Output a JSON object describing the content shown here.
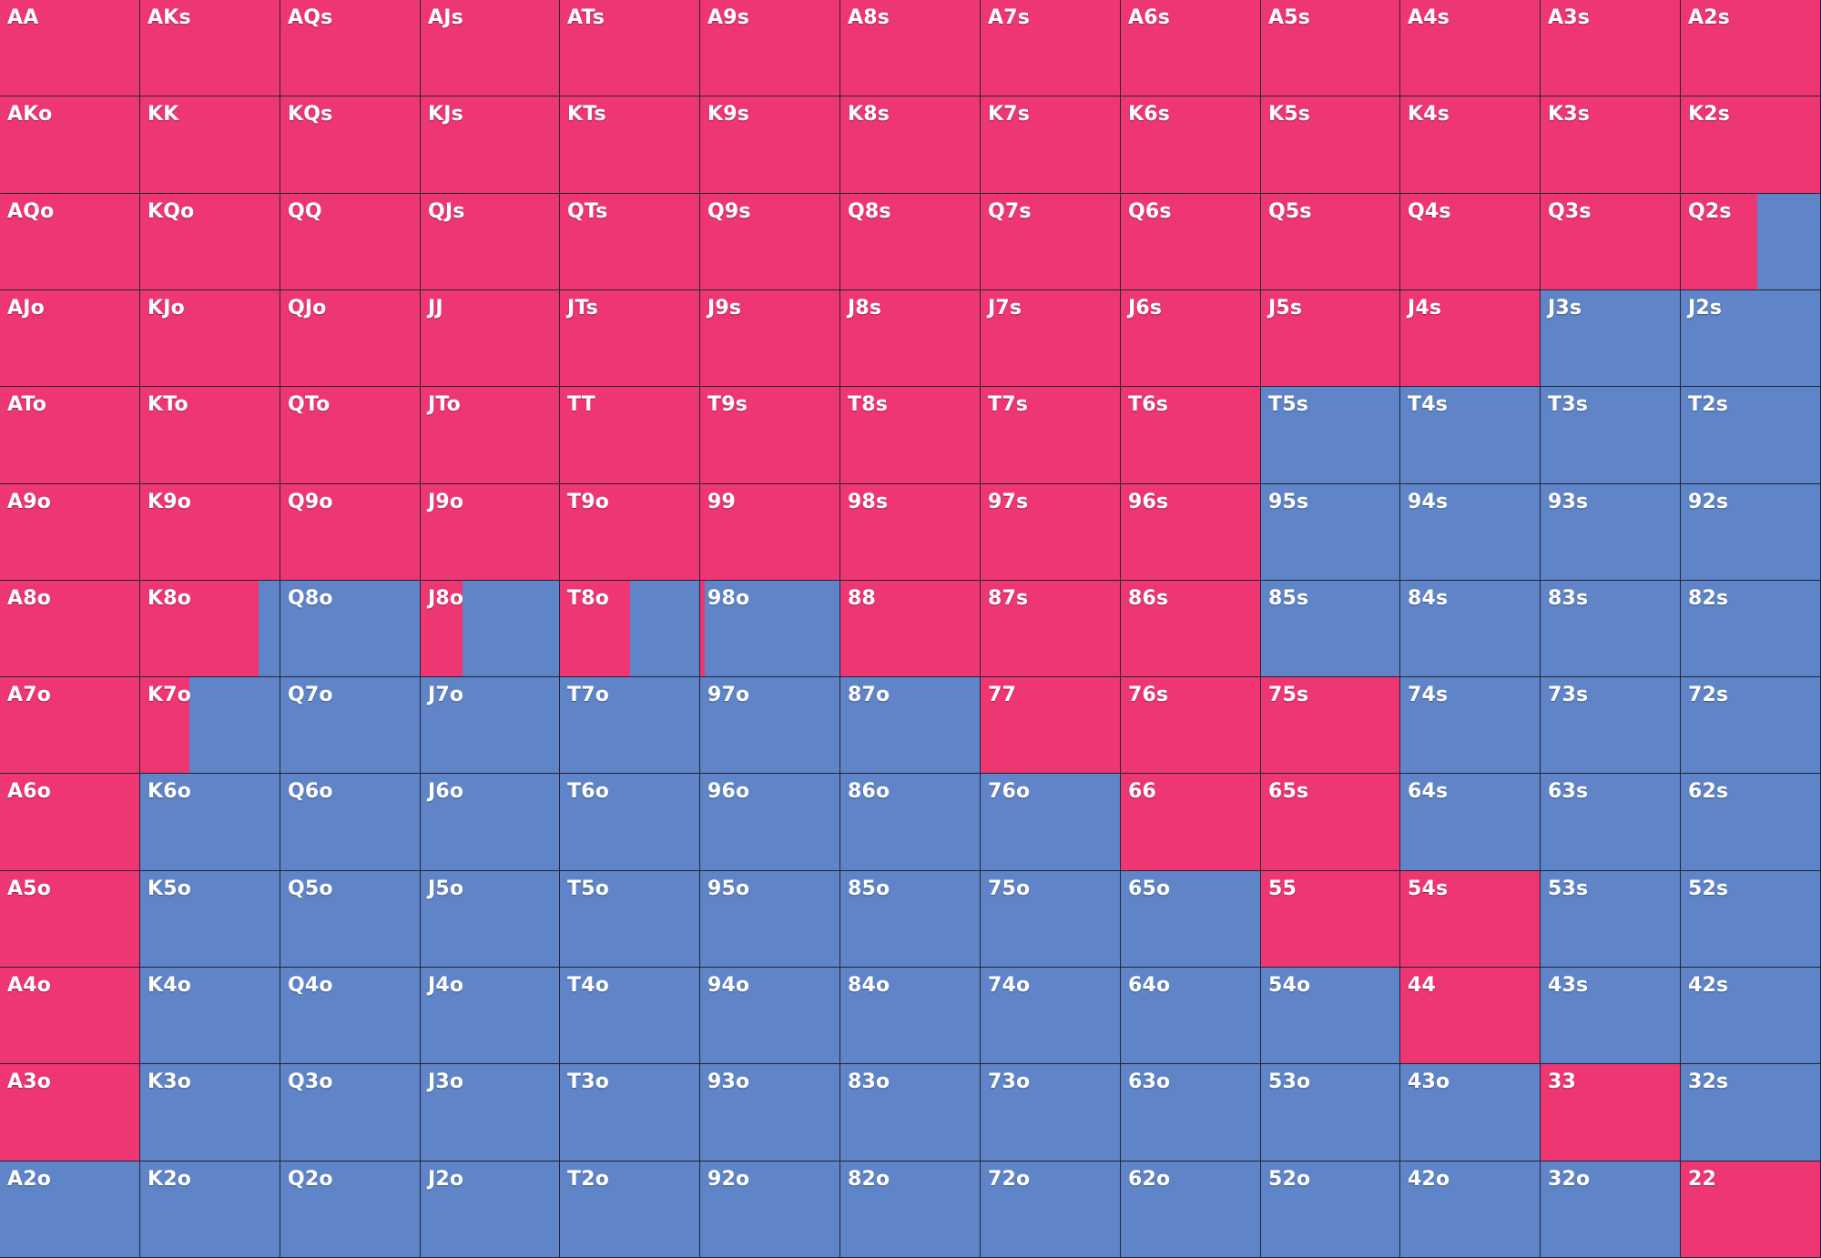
{
  "colors": {
    "raise": "#ed3672",
    "fold": "#5f84c7"
  },
  "ranks": [
    "A",
    "K",
    "Q",
    "J",
    "T",
    "9",
    "8",
    "7",
    "6",
    "5",
    "4",
    "3",
    "2"
  ],
  "labels": [
    [
      "AA",
      "AKs",
      "AQs",
      "AJs",
      "ATs",
      "A9s",
      "A8s",
      "A7s",
      "A6s",
      "A5s",
      "A4s",
      "A3s",
      "A2s"
    ],
    [
      "AKo",
      "KK",
      "KQs",
      "KJs",
      "KTs",
      "K9s",
      "K8s",
      "K7s",
      "K6s",
      "K5s",
      "K4s",
      "K3s",
      "K2s"
    ],
    [
      "AQo",
      "KQo",
      "QQ",
      "QJs",
      "QTs",
      "Q9s",
      "Q8s",
      "Q7s",
      "Q6s",
      "Q5s",
      "Q4s",
      "Q3s",
      "Q2s"
    ],
    [
      "AJo",
      "KJo",
      "QJo",
      "JJ",
      "JTs",
      "J9s",
      "J8s",
      "J7s",
      "J6s",
      "J5s",
      "J4s",
      "J3s",
      "J2s"
    ],
    [
      "ATo",
      "KTo",
      "QTo",
      "JTo",
      "TT",
      "T9s",
      "T8s",
      "T7s",
      "T6s",
      "T5s",
      "T4s",
      "T3s",
      "T2s"
    ],
    [
      "A9o",
      "K9o",
      "Q9o",
      "J9o",
      "T9o",
      "99",
      "98s",
      "97s",
      "96s",
      "95s",
      "94s",
      "93s",
      "92s"
    ],
    [
      "A8o",
      "K8o",
      "Q8o",
      "J8o",
      "T8o",
      "98o",
      "88",
      "87s",
      "86s",
      "85s",
      "84s",
      "83s",
      "82s"
    ],
    [
      "A7o",
      "K7o",
      "Q7o",
      "J7o",
      "T7o",
      "97o",
      "87o",
      "77",
      "76s",
      "75s",
      "74s",
      "73s",
      "72s"
    ],
    [
      "A6o",
      "K6o",
      "Q6o",
      "J6o",
      "T6o",
      "96o",
      "86o",
      "76o",
      "66",
      "65s",
      "64s",
      "63s",
      "62s"
    ],
    [
      "A5o",
      "K5o",
      "Q5o",
      "J5o",
      "T5o",
      "95o",
      "85o",
      "75o",
      "65o",
      "55",
      "54s",
      "53s",
      "52s"
    ],
    [
      "A4o",
      "K4o",
      "Q4o",
      "J4o",
      "T4o",
      "94o",
      "84o",
      "74o",
      "64o",
      "54o",
      "44",
      "43s",
      "42s"
    ],
    [
      "A3o",
      "K3o",
      "Q3o",
      "J3o",
      "T3o",
      "93o",
      "83o",
      "73o",
      "63o",
      "53o",
      "43o",
      "33",
      "32s"
    ],
    [
      "A2o",
      "K2o",
      "Q2o",
      "J2o",
      "T2o",
      "92o",
      "82o",
      "72o",
      "62o",
      "52o",
      "42o",
      "32o",
      "22"
    ]
  ],
  "raise_freq": [
    [
      1,
      1,
      1,
      1,
      1,
      1,
      1,
      1,
      1,
      1,
      1,
      1,
      1
    ],
    [
      1,
      1,
      1,
      1,
      1,
      1,
      1,
      1,
      1,
      1,
      1,
      1,
      1
    ],
    [
      1,
      1,
      1,
      1,
      1,
      1,
      1,
      1,
      1,
      1,
      1,
      1,
      0.55
    ],
    [
      1,
      1,
      1,
      1,
      1,
      1,
      1,
      1,
      1,
      1,
      1,
      0,
      0
    ],
    [
      1,
      1,
      1,
      1,
      1,
      1,
      1,
      1,
      1,
      0,
      0,
      0,
      0
    ],
    [
      1,
      1,
      1,
      1,
      1,
      1,
      1,
      1,
      1,
      0,
      0,
      0,
      0
    ],
    [
      1,
      0.85,
      0,
      0.3,
      0.5,
      0.03,
      1,
      1,
      1,
      0,
      0,
      0,
      0
    ],
    [
      1,
      0.35,
      0,
      0,
      0,
      0,
      0,
      1,
      1,
      1,
      0,
      0,
      0
    ],
    [
      1,
      0,
      0,
      0,
      0,
      0,
      0,
      0,
      1,
      1,
      0,
      0,
      0
    ],
    [
      1,
      0,
      0,
      0,
      0,
      0,
      0,
      0,
      0,
      1,
      1,
      0,
      0
    ],
    [
      1,
      0,
      0,
      0,
      0,
      0,
      0,
      0,
      0,
      0,
      1,
      0,
      0
    ],
    [
      1,
      0,
      0,
      0,
      0,
      0,
      0,
      0,
      0,
      0,
      0,
      1,
      0
    ],
    [
      0,
      0,
      0,
      0,
      0,
      0,
      0,
      0,
      0,
      0,
      0,
      0,
      1
    ]
  ]
}
